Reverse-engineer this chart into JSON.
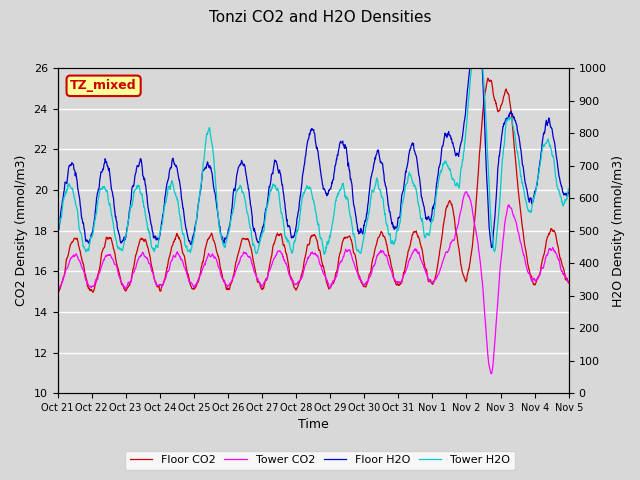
{
  "title": "Tonzi CO2 and H2O Densities",
  "xlabel": "Time",
  "ylabel_left": "CO2 Density (mmol/m3)",
  "ylabel_right": "H2O Density (mmol/m3)",
  "ylim_left": [
    10,
    26
  ],
  "ylim_right": [
    0,
    1000
  ],
  "annotation": "TZ_mixed",
  "annotation_color": "#cc0000",
  "annotation_bg": "#ffff99",
  "annotation_border": "#cc0000",
  "floor_co2_color": "#cc0000",
  "tower_co2_color": "#ff00ff",
  "floor_h2o_color": "#0000cc",
  "tower_h2o_color": "#00cccc",
  "bg_color": "#d8d8d8",
  "axes_bg_color": "#d8d8d8",
  "legend_labels": [
    "Floor CO2",
    "Tower CO2",
    "Floor H2O",
    "Tower H2O"
  ],
  "xtick_labels": [
    "Oct 21",
    "Oct 22",
    "Oct 23",
    "Oct 24",
    "Oct 25",
    "Oct 26",
    "Oct 27",
    "Oct 28",
    "Oct 29",
    "Oct 30",
    "Oct 31",
    "Nov 1",
    "Nov 2",
    "Nov 3",
    "Nov 4",
    "Nov 5"
  ],
  "n_days": 15,
  "n_points_per_day": 96
}
